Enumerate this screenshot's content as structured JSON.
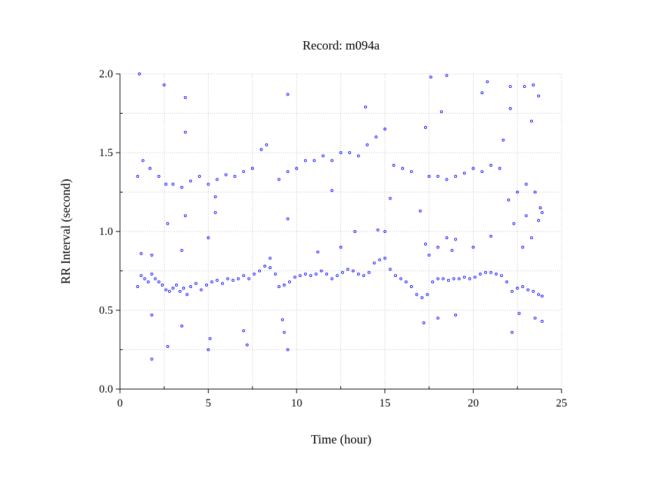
{
  "chart_data": {
    "type": "scatter",
    "title": "Record:  m094a",
    "xlabel": "Time (hour)",
    "ylabel": "RR Interval (second)",
    "xlim": [
      0,
      25
    ],
    "ylim": [
      0,
      2.0
    ],
    "x_ticks": [
      "0",
      "5",
      "10",
      "15",
      "20",
      "25"
    ],
    "y_ticks": [
      "0.0",
      "0.5",
      "1.0",
      "1.5",
      "2.0"
    ],
    "grid": true,
    "grid_style": "dotted",
    "legend": "none",
    "marker": "open-circle",
    "point_color": "#0000ff",
    "series": [
      {
        "points": [
          [
            1.0,
            0.65
          ],
          [
            1.2,
            0.72
          ],
          [
            1.4,
            0.7
          ],
          [
            1.6,
            0.68
          ],
          [
            1.8,
            0.73
          ],
          [
            2.0,
            0.7
          ],
          [
            2.2,
            0.68
          ],
          [
            2.4,
            0.66
          ],
          [
            2.6,
            0.63
          ],
          [
            2.8,
            0.62
          ],
          [
            3.0,
            0.64
          ],
          [
            3.2,
            0.66
          ],
          [
            3.4,
            0.62
          ],
          [
            3.6,
            0.64
          ],
          [
            3.8,
            0.6
          ],
          [
            4.0,
            0.65
          ],
          [
            4.3,
            0.67
          ],
          [
            4.6,
            0.63
          ],
          [
            4.9,
            0.66
          ],
          [
            5.2,
            0.68
          ],
          [
            5.5,
            0.69
          ],
          [
            5.8,
            0.67
          ],
          [
            6.1,
            0.7
          ],
          [
            6.4,
            0.69
          ],
          [
            6.7,
            0.7
          ],
          [
            7.0,
            0.72
          ],
          [
            7.3,
            0.7
          ],
          [
            7.6,
            0.73
          ],
          [
            7.9,
            0.75
          ],
          [
            8.2,
            0.78
          ],
          [
            8.5,
            0.77
          ],
          [
            8.8,
            0.73
          ],
          [
            9.0,
            0.65
          ],
          [
            9.3,
            0.66
          ],
          [
            9.6,
            0.68
          ],
          [
            9.9,
            0.71
          ],
          [
            10.2,
            0.72
          ],
          [
            10.5,
            0.73
          ],
          [
            10.8,
            0.72
          ],
          [
            11.1,
            0.73
          ],
          [
            11.4,
            0.75
          ],
          [
            11.7,
            0.73
          ],
          [
            12.0,
            0.7
          ],
          [
            12.3,
            0.72
          ],
          [
            12.6,
            0.74
          ],
          [
            12.9,
            0.76
          ],
          [
            13.2,
            0.75
          ],
          [
            13.5,
            0.73
          ],
          [
            13.8,
            0.72
          ],
          [
            14.1,
            0.74
          ],
          [
            14.4,
            0.8
          ],
          [
            14.7,
            0.82
          ],
          [
            15.0,
            0.83
          ],
          [
            15.3,
            0.76
          ],
          [
            15.6,
            0.72
          ],
          [
            15.9,
            0.7
          ],
          [
            16.2,
            0.68
          ],
          [
            16.5,
            0.65
          ],
          [
            16.8,
            0.6
          ],
          [
            17.1,
            0.58
          ],
          [
            17.4,
            0.6
          ],
          [
            17.7,
            0.68
          ],
          [
            18.0,
            0.7
          ],
          [
            18.3,
            0.7
          ],
          [
            18.6,
            0.69
          ],
          [
            18.9,
            0.7
          ],
          [
            19.2,
            0.7
          ],
          [
            19.5,
            0.71
          ],
          [
            19.8,
            0.7
          ],
          [
            20.1,
            0.71
          ],
          [
            20.4,
            0.73
          ],
          [
            20.7,
            0.74
          ],
          [
            21.0,
            0.74
          ],
          [
            21.3,
            0.73
          ],
          [
            21.6,
            0.72
          ],
          [
            21.9,
            0.68
          ],
          [
            22.2,
            0.62
          ],
          [
            22.5,
            0.64
          ],
          [
            22.8,
            0.65
          ],
          [
            23.1,
            0.63
          ],
          [
            23.4,
            0.62
          ],
          [
            23.7,
            0.6
          ],
          [
            23.9,
            0.59
          ],
          [
            1.0,
            1.35
          ],
          [
            1.3,
            1.45
          ],
          [
            1.7,
            1.4
          ],
          [
            2.2,
            1.35
          ],
          [
            2.6,
            1.3
          ],
          [
            3.0,
            1.3
          ],
          [
            3.5,
            1.28
          ],
          [
            4.0,
            1.32
          ],
          [
            4.5,
            1.35
          ],
          [
            5.0,
            1.3
          ],
          [
            5.5,
            1.33
          ],
          [
            6.0,
            1.36
          ],
          [
            6.5,
            1.35
          ],
          [
            7.0,
            1.38
          ],
          [
            7.5,
            1.4
          ],
          [
            8.0,
            1.52
          ],
          [
            8.3,
            1.55
          ],
          [
            9.0,
            1.33
          ],
          [
            9.5,
            1.38
          ],
          [
            10.0,
            1.4
          ],
          [
            10.5,
            1.45
          ],
          [
            11.0,
            1.45
          ],
          [
            11.5,
            1.48
          ],
          [
            12.0,
            1.45
          ],
          [
            12.5,
            1.5
          ],
          [
            13.0,
            1.5
          ],
          [
            13.5,
            1.48
          ],
          [
            14.0,
            1.55
          ],
          [
            14.5,
            1.6
          ],
          [
            15.0,
            1.65
          ],
          [
            15.5,
            1.42
          ],
          [
            16.0,
            1.4
          ],
          [
            16.5,
            1.38
          ],
          [
            17.5,
            1.35
          ],
          [
            18.0,
            1.35
          ],
          [
            18.5,
            1.33
          ],
          [
            19.0,
            1.35
          ],
          [
            19.5,
            1.37
          ],
          [
            20.0,
            1.4
          ],
          [
            20.5,
            1.38
          ],
          [
            21.0,
            1.42
          ],
          [
            21.5,
            1.4
          ],
          [
            22.0,
            1.2
          ],
          [
            22.5,
            1.25
          ],
          [
            23.0,
            1.3
          ],
          [
            23.5,
            1.25
          ],
          [
            23.8,
            1.15
          ],
          [
            1.1,
            2.0
          ],
          [
            2.5,
            1.93
          ],
          [
            3.7,
            1.85
          ],
          [
            9.5,
            1.87
          ],
          [
            13.9,
            1.79
          ],
          [
            17.3,
            1.66
          ],
          [
            17.6,
            1.98
          ],
          [
            18.2,
            1.76
          ],
          [
            18.5,
            1.99
          ],
          [
            20.5,
            1.88
          ],
          [
            20.8,
            1.95
          ],
          [
            22.1,
            1.92
          ],
          [
            22.9,
            1.92
          ],
          [
            23.4,
            1.93
          ],
          [
            23.7,
            1.86
          ],
          [
            22.1,
            1.78
          ],
          [
            23.3,
            1.7
          ],
          [
            21.7,
            1.58
          ],
          [
            1.8,
            0.19
          ],
          [
            2.7,
            0.27
          ],
          [
            5.0,
            0.25
          ],
          [
            5.1,
            0.32
          ],
          [
            7.2,
            0.28
          ],
          [
            9.5,
            0.25
          ],
          [
            9.3,
            0.36
          ],
          [
            7.0,
            0.37
          ],
          [
            3.5,
            0.4
          ],
          [
            22.2,
            0.36
          ],
          [
            1.8,
            0.47
          ],
          [
            9.2,
            0.44
          ],
          [
            17.2,
            0.42
          ],
          [
            18.0,
            0.45
          ],
          [
            19.0,
            0.47
          ],
          [
            23.5,
            0.45
          ],
          [
            23.9,
            0.43
          ],
          [
            22.6,
            0.48
          ],
          [
            1.2,
            0.86
          ],
          [
            1.8,
            0.85
          ],
          [
            3.5,
            0.88
          ],
          [
            5.0,
            0.96
          ],
          [
            8.5,
            0.83
          ],
          [
            11.2,
            0.87
          ],
          [
            12.5,
            0.9
          ],
          [
            13.3,
            1.0
          ],
          [
            14.6,
            1.01
          ],
          [
            15.0,
            1.0
          ],
          [
            17.3,
            0.92
          ],
          [
            18.0,
            0.9
          ],
          [
            18.5,
            0.96
          ],
          [
            19.0,
            0.95
          ],
          [
            20.0,
            0.9
          ],
          [
            21.0,
            0.97
          ],
          [
            23.3,
            0.96
          ],
          [
            17.5,
            0.85
          ],
          [
            18.8,
            0.88
          ],
          [
            22.8,
            0.9
          ],
          [
            2.7,
            1.05
          ],
          [
            3.7,
            1.1
          ],
          [
            5.4,
            1.12
          ],
          [
            9.5,
            1.08
          ],
          [
            15.3,
            1.21
          ],
          [
            17.0,
            1.13
          ],
          [
            22.3,
            1.05
          ],
          [
            23.0,
            1.1
          ],
          [
            23.7,
            1.07
          ],
          [
            23.9,
            1.12
          ],
          [
            12.0,
            1.26
          ],
          [
            5.4,
            1.22
          ],
          [
            3.7,
            1.63
          ]
        ]
      }
    ]
  }
}
